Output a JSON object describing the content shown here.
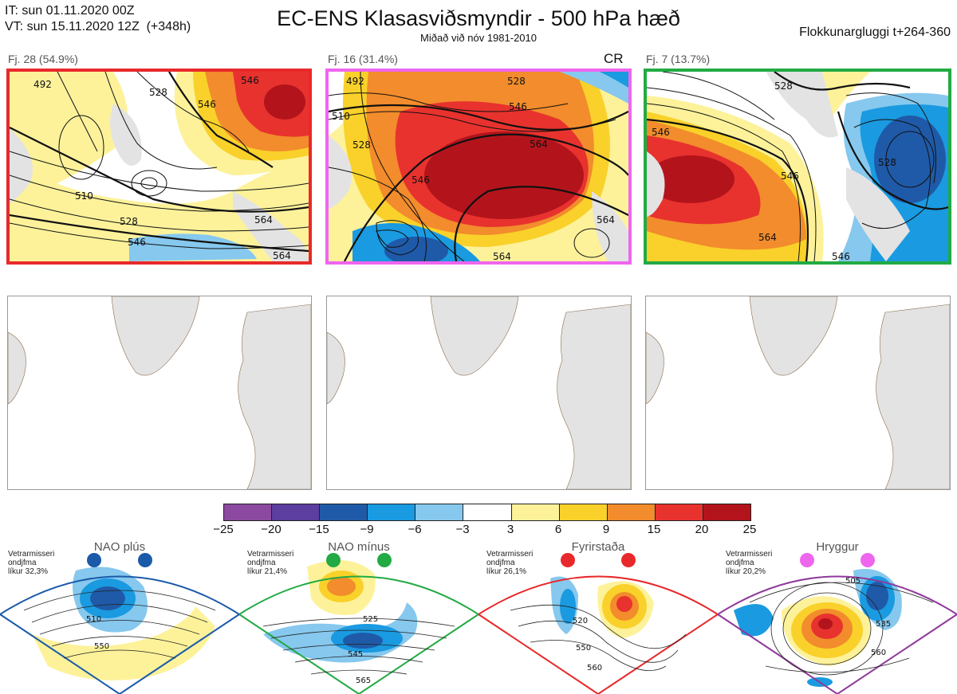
{
  "header": {
    "init_line": "IT: sun 01.11.2020 00Z",
    "valid_line": "VT: sun 15.11.2020 12Z  (+348h)",
    "title": "EC-ENS Klasasviðsmyndir - 500 hPa hæð",
    "subtitle": "Miðað við nóv 1981-2010",
    "window": "Flokkunargluggi t+264-360"
  },
  "clusters": [
    {
      "label": "Fj. 28 (54.9%)",
      "frame_color": "#e8292b",
      "tag": "",
      "contours": [
        "492",
        "528",
        "510",
        "528",
        "546",
        "546",
        "546",
        "564",
        "564"
      ]
    },
    {
      "label": "Fj. 16 (31.4%)",
      "frame_color": "#ee66ee",
      "tag": "CR",
      "contours": [
        "492",
        "510",
        "528",
        "546",
        "564",
        "546",
        "564",
        "564",
        "528"
      ]
    },
    {
      "label": "Fj. 7 (13.7%)",
      "frame_color": "#22aa44",
      "tag": "",
      "contours": [
        "528",
        "546",
        "546",
        "528",
        "564",
        "546"
      ]
    }
  ],
  "colorbar": {
    "colors": [
      "#8b4aa0",
      "#5b3ea0",
      "#1f5aa8",
      "#1a9ae0",
      "#86c8ee",
      "#ffffff",
      "#fdf29a",
      "#f9d12a",
      "#f28c2c",
      "#e8322e",
      "#b3141c"
    ],
    "labels": [
      "−25",
      "−20",
      "−15",
      "−9",
      "−6",
      "−3",
      "3",
      "6",
      "9",
      "15",
      "20",
      "25"
    ]
  },
  "regimes": [
    {
      "name": "NAO plús",
      "note": "Vetrarmisseri\nondjfma\nlíkur 32,3%",
      "color": "#1a5aa8",
      "contours": [
        "510",
        "550"
      ]
    },
    {
      "name": "NAO mínus",
      "note": "Vetrarmisseri\nondjfma\nlíkur 21,4%",
      "color": "#22aa44",
      "contours": [
        "525",
        "545",
        "565"
      ]
    },
    {
      "name": "Fyrirstaða",
      "note": "Vetrarmisseri\nondjfma\nlíkur 26,1%",
      "color": "#e8292b",
      "contours": [
        "520",
        "550",
        "560"
      ]
    },
    {
      "name": "Hryggur",
      "note": "Vetrarmisseri\nondjfma\nlíkur 20,2%",
      "color": "#ee66ee",
      "contours": [
        "505",
        "535",
        "560"
      ]
    }
  ]
}
